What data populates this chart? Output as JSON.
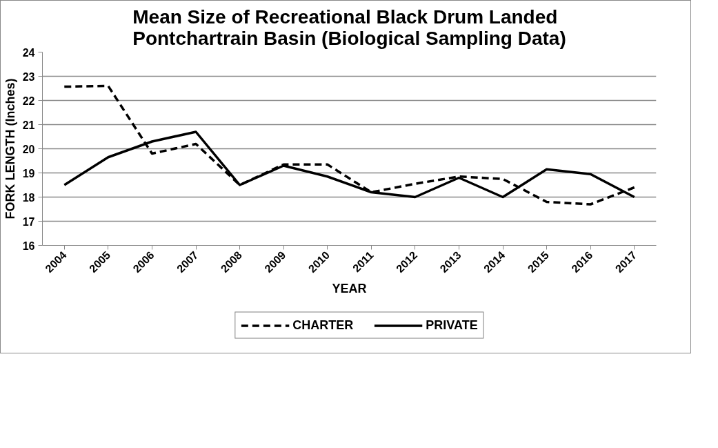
{
  "chart_data": {
    "type": "line",
    "title": "Mean Size of Recreational Black Drum Landed Pontchartrain Basin (Biological Sampling Data)",
    "xlabel": "YEAR",
    "ylabel": "FORK LENGTH (Inches)",
    "categories": [
      "2004",
      "2005",
      "2006",
      "2007",
      "2008",
      "2009",
      "2010",
      "2011",
      "2012",
      "2013",
      "2014",
      "2015",
      "2016",
      "2017"
    ],
    "series": [
      {
        "name": "CHARTER",
        "color": "#000000",
        "line_style": "dashed",
        "values": [
          22.57,
          22.6,
          19.8,
          20.2,
          18.5,
          19.35,
          19.35,
          18.2,
          18.55,
          18.85,
          18.75,
          17.8,
          17.7,
          18.4
        ]
      },
      {
        "name": "PRIVATE",
        "color": "#000000",
        "line_style": "solid",
        "values": [
          18.5,
          19.65,
          20.3,
          20.7,
          18.5,
          19.3,
          18.85,
          18.2,
          18.0,
          18.8,
          18.0,
          19.15,
          18.95,
          18.0
        ]
      }
    ],
    "ylim": [
      16,
      24
    ],
    "yticks": [
      16,
      17,
      18,
      19,
      20,
      21,
      22,
      23,
      24
    ],
    "grid": "y",
    "legend": "bottom",
    "marker": "none"
  }
}
